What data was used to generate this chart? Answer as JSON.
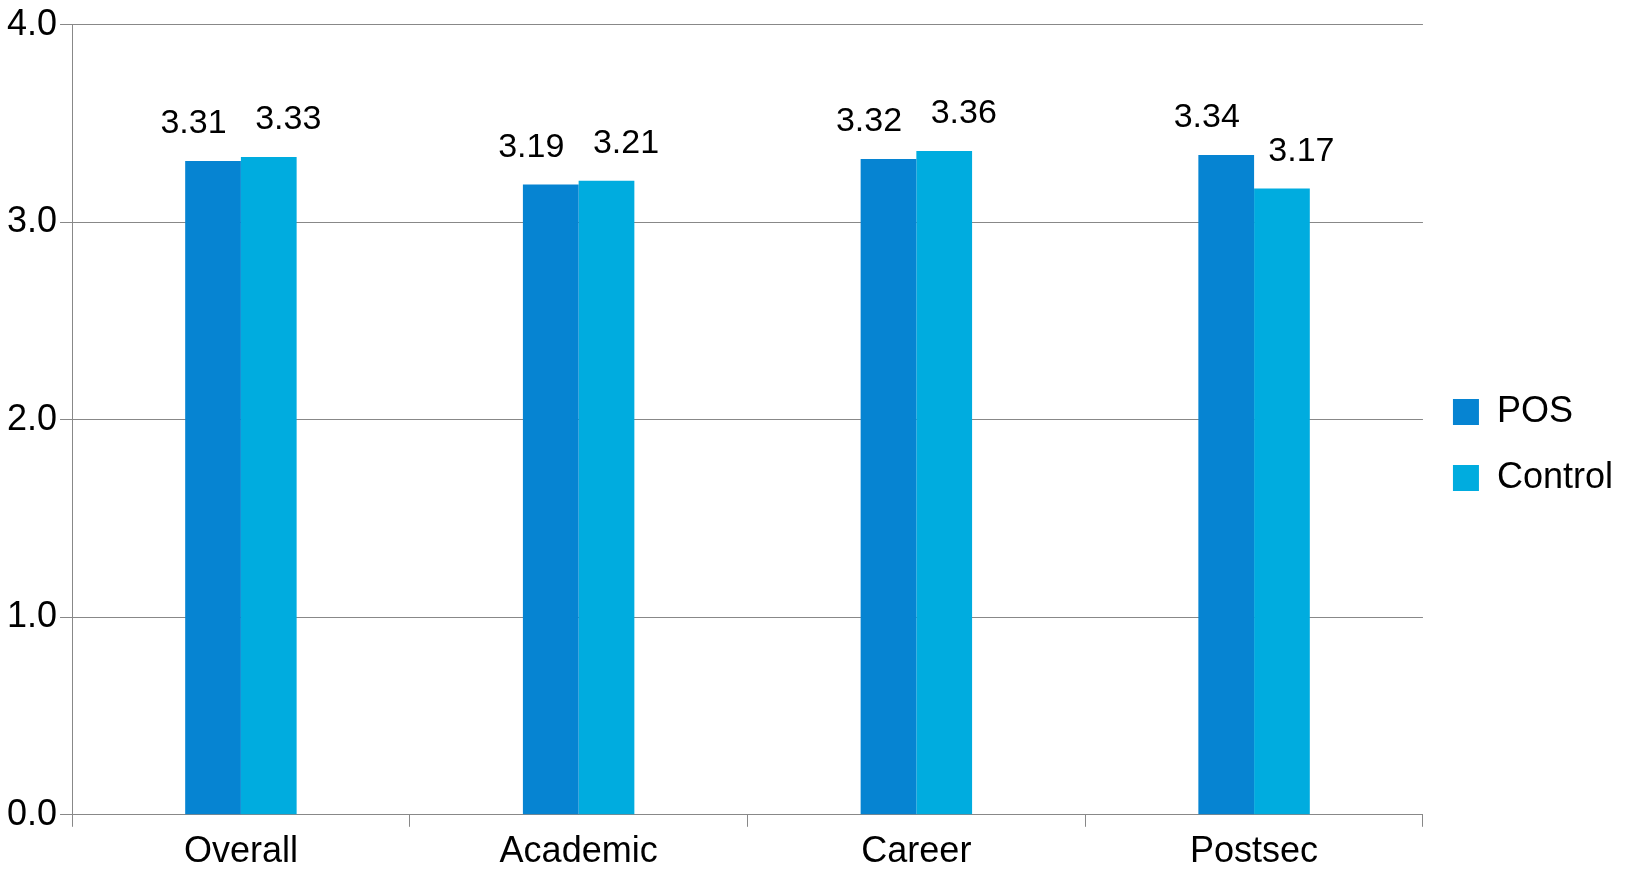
{
  "chart_data": {
    "type": "bar",
    "categories": [
      "Overall",
      "Academic",
      "Career",
      "Postsec"
    ],
    "series": [
      {
        "name": "POS",
        "color": "#0684d2",
        "values": [
          3.31,
          3.19,
          3.32,
          3.34
        ]
      },
      {
        "name": "Control",
        "color": "#00acdf",
        "values": [
          3.33,
          3.21,
          3.36,
          3.17
        ]
      }
    ],
    "ylim": [
      0,
      4
    ],
    "yticks": [
      {
        "value": 0,
        "label": "0.0"
      },
      {
        "value": 1,
        "label": "1.0"
      },
      {
        "value": 2,
        "label": "2.0"
      },
      {
        "value": 3,
        "label": "3.0"
      },
      {
        "value": 4,
        "label": "4.0"
      }
    ],
    "grid": "y",
    "legend": "right",
    "data_labels": true
  }
}
